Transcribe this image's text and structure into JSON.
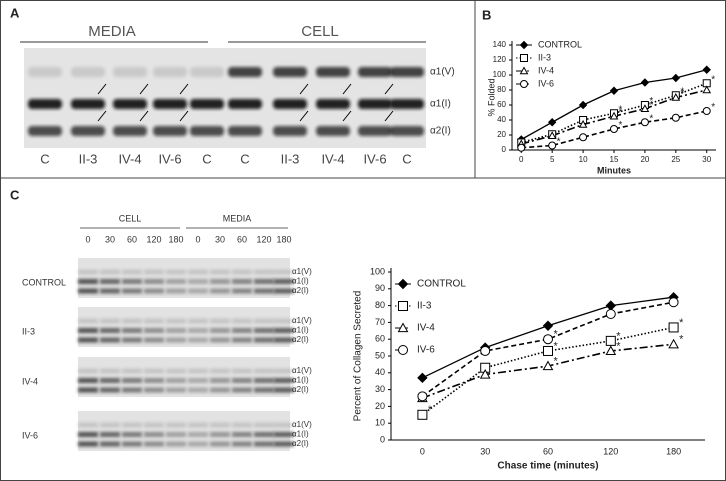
{
  "panel_labels": [
    "A",
    "B",
    "C"
  ],
  "gel_a": {
    "groups": [
      "MEDIA",
      "CELL"
    ],
    "lanes": [
      "C",
      "II-3",
      "IV-4",
      "IV-6",
      "C",
      "C",
      "II-3",
      "IV-4",
      "IV-6",
      "C"
    ],
    "chains": [
      "α1(V)",
      "α1(I)",
      "α2(I)"
    ]
  },
  "gel_c": {
    "groups": [
      "CELL",
      "MEDIA"
    ],
    "timepoints": [
      "0",
      "30",
      "60",
      "120",
      "180",
      "0",
      "30",
      "60",
      "120",
      "180"
    ],
    "rows": [
      "CONTROL",
      "II-3",
      "IV-4",
      "IV-6"
    ],
    "chains": [
      "α1(V)",
      "α1(I)",
      "α2(I)"
    ]
  },
  "chart_data": [
    {
      "type": "line",
      "xlabel": "Minutes",
      "ylabel": "% Folded",
      "x": [
        0,
        5,
        10,
        15,
        20,
        25,
        30
      ],
      "xlim": [
        -1.5,
        31.5
      ],
      "xticks": [
        0,
        5,
        10,
        15,
        20,
        25,
        30
      ],
      "ylim": [
        0,
        140
      ],
      "yticks": [
        0,
        20,
        40,
        60,
        80,
        100,
        120,
        140
      ],
      "legend": "upper left",
      "significance_mark": "*",
      "series": [
        {
          "name": "CONTROL",
          "color": "#000000",
          "marker": "diamond",
          "line_style": "solid",
          "values": [
            14,
            37,
            60,
            79,
            90,
            96,
            107
          ],
          "starred": []
        },
        {
          "name": "II-3",
          "color": "#000000",
          "marker": "square",
          "line_style": "dotted",
          "values": [
            10,
            21,
            40,
            49,
            60,
            73,
            89
          ],
          "starred": [
            3,
            4,
            5,
            6
          ]
        },
        {
          "name": "IV-4",
          "color": "#000000",
          "marker": "triangle",
          "line_style": "dashdot",
          "values": [
            8,
            19,
            34,
            45,
            55,
            70,
            80
          ],
          "starred": [
            3,
            4,
            5
          ]
        },
        {
          "name": "IV-6",
          "color": "#000000",
          "marker": "circle",
          "line_style": "dashed",
          "values": [
            3,
            6,
            17,
            28,
            37,
            43,
            52
          ],
          "starred": [
            1,
            3,
            4,
            6
          ]
        }
      ]
    },
    {
      "type": "line",
      "xlabel": "Chase time (minutes)",
      "ylabel": "Percent of Collagen Secreted",
      "categories": [
        "0",
        "30",
        "60",
        "120",
        "180"
      ],
      "ylim": [
        0,
        100
      ],
      "yticks": [
        0,
        10,
        20,
        30,
        40,
        50,
        60,
        70,
        80,
        90,
        100
      ],
      "legend": "upper left",
      "significance_mark": "*",
      "series": [
        {
          "name": "CONTROL",
          "color": "#000000",
          "marker": "diamond",
          "line_style": "solid",
          "values": [
            37,
            55,
            68,
            80,
            85
          ],
          "starred": []
        },
        {
          "name": "II-3",
          "color": "#000000",
          "marker": "square",
          "line_style": "dotted",
          "values": [
            15,
            43,
            53,
            59,
            67
          ],
          "starred": [
            0,
            2,
            3,
            4
          ]
        },
        {
          "name": "IV-4",
          "color": "#000000",
          "marker": "triangle",
          "line_style": "dashdot",
          "values": [
            25,
            39,
            44,
            53,
            57
          ],
          "starred": [
            2,
            3,
            4
          ]
        },
        {
          "name": "IV-6",
          "color": "#000000",
          "marker": "circle",
          "line_style": "dashed",
          "values": [
            26,
            53,
            60,
            75,
            82
          ],
          "starred": [
            2
          ]
        }
      ]
    }
  ]
}
